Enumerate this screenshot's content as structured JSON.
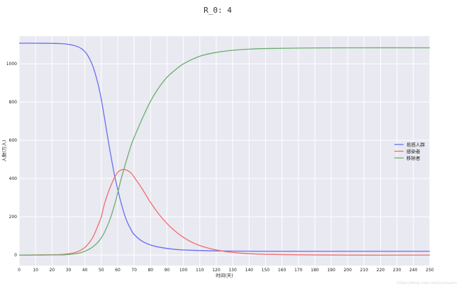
{
  "chart_data": {
    "type": "line",
    "title": "R_0: 4",
    "xlabel": "时间(天)",
    "ylabel": "人数(万人)",
    "xlim": [
      0,
      250
    ],
    "ylim": [
      -55,
      1145
    ],
    "xticks": [
      0,
      10,
      20,
      30,
      40,
      50,
      60,
      70,
      80,
      90,
      100,
      110,
      120,
      130,
      140,
      150,
      160,
      170,
      180,
      190,
      200,
      210,
      220,
      230,
      240,
      250
    ],
    "yticks": [
      0,
      200,
      400,
      600,
      800,
      1000
    ],
    "grid": true,
    "background": "#e9e9f1",
    "legend_position": "center-right",
    "series": [
      {
        "name": "易感人群",
        "color": "#6a6ef0",
        "x": [
          0,
          10,
          20,
          25,
          30,
          35,
          38,
          40,
          42,
          45,
          48,
          50,
          52,
          55,
          58,
          60,
          62,
          65,
          68,
          70,
          75,
          80,
          85,
          90,
          95,
          100,
          110,
          120,
          130,
          150,
          200,
          250
        ],
        "values": [
          1108,
          1108,
          1107,
          1106,
          1102,
          1092,
          1079,
          1064,
          1040,
          985,
          895,
          815,
          715,
          560,
          420,
          345,
          275,
          190,
          135,
          108,
          72,
          53,
          42,
          35,
          30,
          27,
          24,
          22,
          21,
          20,
          20,
          20
        ]
      },
      {
        "name": "感染者",
        "color": "#f06e6e",
        "x": [
          0,
          10,
          20,
          25,
          30,
          35,
          38,
          40,
          42,
          45,
          48,
          50,
          52,
          55,
          58,
          60,
          62,
          65,
          68,
          70,
          75,
          80,
          85,
          90,
          95,
          100,
          105,
          110,
          115,
          120,
          130,
          150,
          200,
          250
        ],
        "values": [
          0,
          1,
          2,
          3,
          7,
          16,
          28,
          40,
          58,
          95,
          155,
          200,
          270,
          345,
          405,
          432,
          445,
          446,
          430,
          408,
          345,
          275,
          215,
          165,
          125,
          93,
          68,
          50,
          37,
          27,
          14,
          4,
          0,
          0
        ]
      },
      {
        "name": "移除者",
        "color": "#6aae6e",
        "x": [
          0,
          10,
          20,
          25,
          30,
          35,
          38,
          40,
          42,
          45,
          48,
          50,
          52,
          55,
          58,
          60,
          62,
          65,
          68,
          70,
          75,
          80,
          85,
          90,
          95,
          100,
          110,
          120,
          130,
          140,
          150,
          175,
          200,
          250
        ],
        "values": [
          0,
          0,
          1,
          1,
          3,
          8,
          14,
          20,
          28,
          44,
          68,
          90,
          120,
          180,
          260,
          325,
          395,
          485,
          570,
          615,
          715,
          805,
          875,
          930,
          968,
          1000,
          1040,
          1060,
          1071,
          1077,
          1080,
          1083,
          1084,
          1084
        ]
      }
    ],
    "watermark": "https://blog.csdn.net/yuzhuam"
  }
}
